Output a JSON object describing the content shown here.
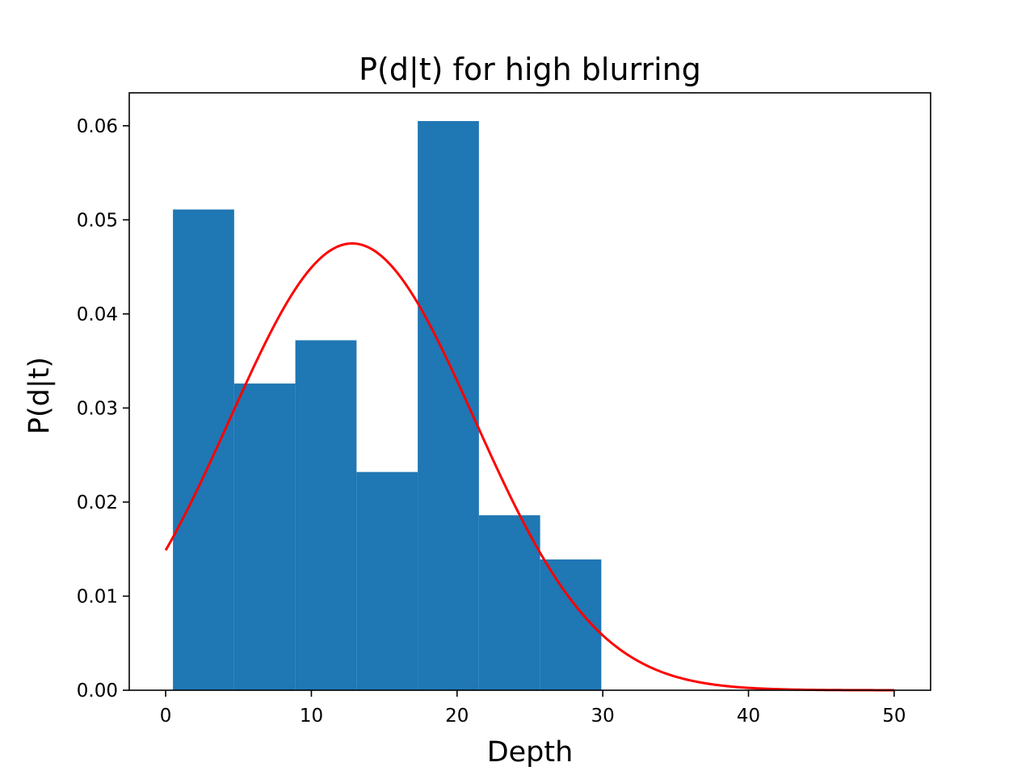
{
  "chart_data": {
    "type": "bar",
    "title": "P(d|t) for high blurring",
    "xlabel": "Depth",
    "ylabel": "P(d|t)",
    "xlim": [
      -2.5,
      52.5
    ],
    "ylim": [
      0,
      0.0635
    ],
    "xticks": [
      0,
      10,
      20,
      30,
      40,
      50
    ],
    "xtick_labels": [
      "0",
      "10",
      "20",
      "30",
      "40",
      "50"
    ],
    "yticks": [
      0.0,
      0.01,
      0.02,
      0.03,
      0.04,
      0.05,
      0.06
    ],
    "ytick_labels": [
      "0.00",
      "0.01",
      "0.02",
      "0.03",
      "0.04",
      "0.05",
      "0.06"
    ],
    "grid": false,
    "histogram": {
      "bin_edges": [
        0.5,
        4.7,
        8.9,
        13.1,
        17.3,
        21.5,
        25.7,
        29.9
      ],
      "values": [
        0.0511,
        0.0326,
        0.0372,
        0.0232,
        0.0605,
        0.0186,
        0.0139
      ],
      "color": "#1f77b4"
    },
    "fit_curve": {
      "type": "normal_pdf",
      "mean": 12.8,
      "std": 8.4,
      "x_range": [
        0,
        50
      ],
      "color": "#ff0000"
    }
  }
}
